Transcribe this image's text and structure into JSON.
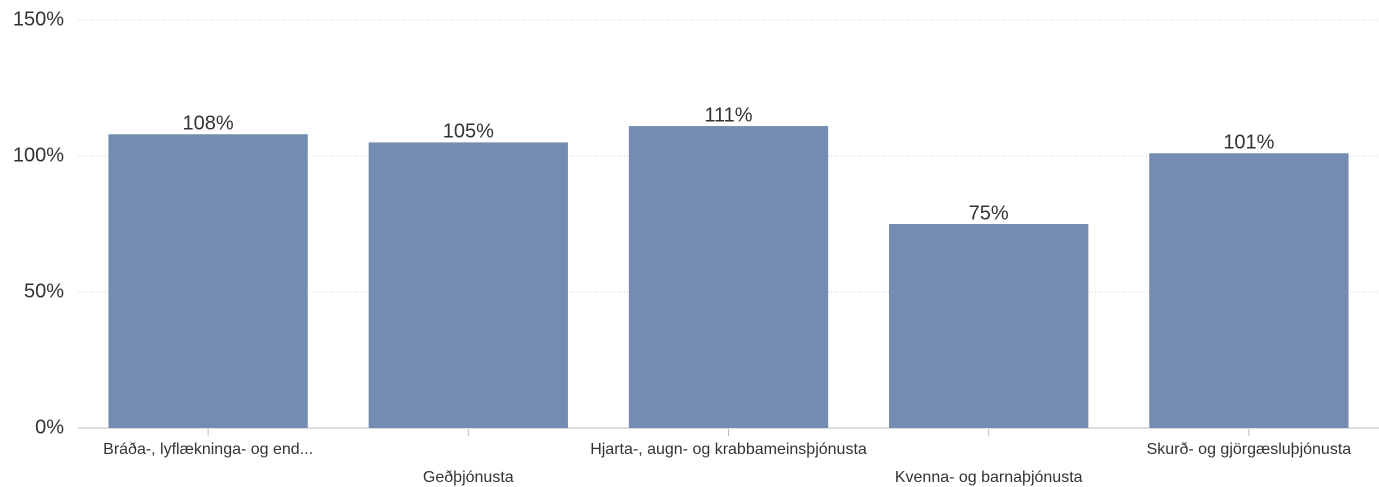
{
  "chart_data": {
    "type": "bar",
    "categories": [
      "Bráða-, lyflækninga- og end...",
      "Geðþjónusta",
      "Hjarta-, augn- og krabbameinsþjónusta",
      "Kvenna- og barnaþjónusta",
      "Skurð- og gjörgæsluþjónusta"
    ],
    "values": [
      108,
      105,
      111,
      75,
      101
    ],
    "value_labels": [
      "108%",
      "105%",
      "111%",
      "75%",
      "101%"
    ],
    "color": "#748cb2",
    "ylim": [
      0,
      150
    ],
    "yticks": [
      {
        "value": 0,
        "label": "0%"
      },
      {
        "value": 50,
        "label": "50%"
      },
      {
        "value": 100,
        "label": "100%"
      },
      {
        "value": 150,
        "label": "150%"
      }
    ],
    "grid": true
  }
}
